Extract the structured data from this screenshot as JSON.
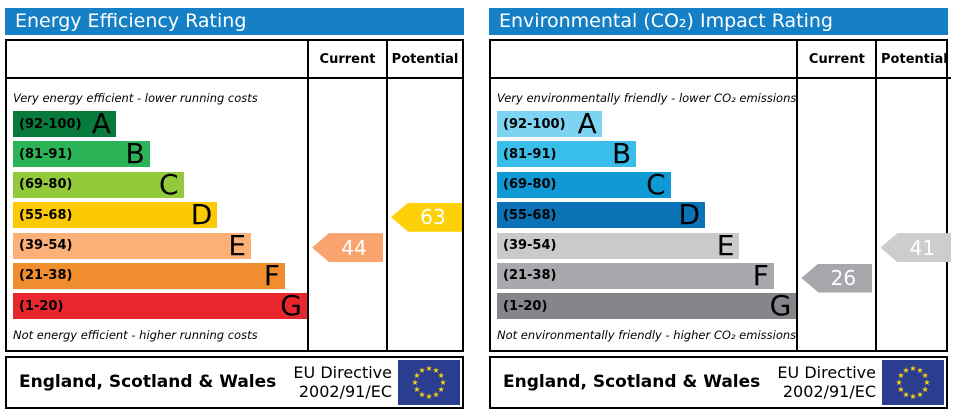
{
  "panels": [
    {
      "title": "Energy Efficiency Rating",
      "columns": {
        "current": "Current",
        "potential": "Potential"
      },
      "top_caption": "Very energy efficient - lower running costs",
      "bottom_caption": "Not energy efficient - higher running costs",
      "bands": [
        {
          "range": "(92-100)",
          "letter": "A",
          "color": "#087a3c",
          "width_pct": 35
        },
        {
          "range": "(81-91)",
          "letter": "B",
          "color": "#2bb357",
          "width_pct": 46.5
        },
        {
          "range": "(69-80)",
          "letter": "C",
          "color": "#93ca3c",
          "width_pct": 58
        },
        {
          "range": "(55-68)",
          "letter": "D",
          "color": "#fcca05",
          "width_pct": 69.5
        },
        {
          "range": "(39-54)",
          "letter": "E",
          "color": "#fab077",
          "width_pct": 81
        },
        {
          "range": "(21-38)",
          "letter": "F",
          "color": "#ef8d2f",
          "width_pct": 92.5
        },
        {
          "range": "(1-20)",
          "letter": "G",
          "color": "#e8262d",
          "width_pct": 100
        }
      ],
      "current": {
        "value": "44",
        "band_index": 4,
        "color": "#f9a36f"
      },
      "potential": {
        "value": "63",
        "band_index": 3,
        "color": "#fdd008"
      },
      "footer": {
        "region": "England, Scotland & Wales",
        "directive_line1": "EU Directive",
        "directive_line2": "2002/91/EC"
      }
    },
    {
      "title": "Environmental (CO₂) Impact Rating",
      "columns": {
        "current": "Current",
        "potential": "Potential"
      },
      "top_caption": "Very environmentally friendly - lower CO₂ emissions",
      "bottom_caption": "Not environmentally friendly - higher CO₂ emissions",
      "bands": [
        {
          "range": "(92-100)",
          "letter": "A",
          "color": "#7ed3f2",
          "width_pct": 35
        },
        {
          "range": "(81-91)",
          "letter": "B",
          "color": "#39bde9",
          "width_pct": 46.5
        },
        {
          "range": "(69-80)",
          "letter": "C",
          "color": "#0f9ad5",
          "width_pct": 58
        },
        {
          "range": "(55-68)",
          "letter": "D",
          "color": "#0b73b5",
          "width_pct": 69.5
        },
        {
          "range": "(39-54)",
          "letter": "E",
          "color": "#c9cacc",
          "width_pct": 81
        },
        {
          "range": "(21-38)",
          "letter": "F",
          "color": "#a7a9ac",
          "width_pct": 92.5
        },
        {
          "range": "(1-20)",
          "letter": "G",
          "color": "#84868a",
          "width_pct": 100
        }
      ],
      "current": {
        "value": "26",
        "band_index": 5,
        "color": "#a5a7aa"
      },
      "potential": {
        "value": "41",
        "band_index": 4,
        "color": "#cbcdce"
      },
      "footer": {
        "region": "England, Scotland & Wales",
        "directive_line1": "EU Directive",
        "directive_line2": "2002/91/EC"
      }
    }
  ],
  "colors": {
    "header_blue": "#1580c6",
    "eu_flag_blue": "#2b3d8f",
    "eu_star_yellow": "#f8d20a"
  },
  "chart_data": [
    {
      "type": "bar",
      "title": "Energy Efficiency Rating",
      "categories": [
        "A (92-100)",
        "B (81-91)",
        "C (69-80)",
        "D (55-68)",
        "E (39-54)",
        "F (21-38)",
        "G (1-20)"
      ],
      "series": [
        {
          "name": "Current",
          "value": 44,
          "band": "E"
        },
        {
          "name": "Potential",
          "value": 63,
          "band": "D"
        }
      ],
      "xlabel": "",
      "ylabel": "",
      "value_range": [
        1,
        100
      ],
      "annotations": [
        "Very energy efficient - lower running costs",
        "Not energy efficient - higher running costs",
        "England, Scotland & Wales",
        "EU Directive 2002/91/EC"
      ]
    },
    {
      "type": "bar",
      "title": "Environmental (CO₂) Impact Rating",
      "categories": [
        "A (92-100)",
        "B (81-91)",
        "C (69-80)",
        "D (55-68)",
        "E (39-54)",
        "F (21-38)",
        "G (1-20)"
      ],
      "series": [
        {
          "name": "Current",
          "value": 26,
          "band": "F"
        },
        {
          "name": "Potential",
          "value": 41,
          "band": "E"
        }
      ],
      "xlabel": "",
      "ylabel": "",
      "value_range": [
        1,
        100
      ],
      "annotations": [
        "Very environmentally friendly - lower CO₂ emissions",
        "Not environmentally friendly - higher CO₂ emissions",
        "England, Scotland & Wales",
        "EU Directive 2002/91/EC"
      ]
    }
  ]
}
